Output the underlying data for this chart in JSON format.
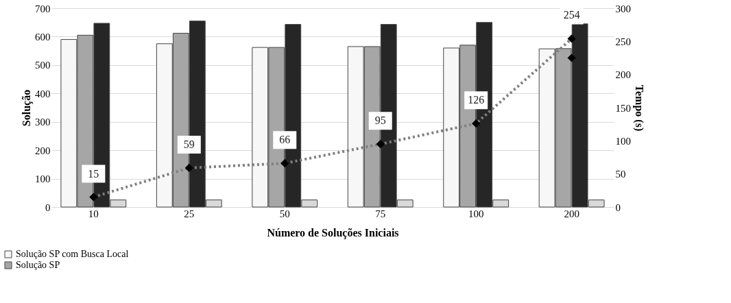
{
  "chart_data": {
    "type": "bar",
    "xlabel": "Número de Soluções Iniciais",
    "ylabel": "Solução",
    "y2label": "Tempo (s)",
    "categories": [
      "10",
      "25",
      "50",
      "75",
      "100",
      "200"
    ],
    "series": [
      {
        "name": "Solução SP com Busca Local",
        "color": "#f7f7f7",
        "values": [
          590,
          575,
          562,
          565,
          560,
          557
        ]
      },
      {
        "name": "Solução SP",
        "color": "#a6a6a6",
        "values": [
          605,
          612,
          562,
          565,
          570,
          558
        ]
      },
      {
        "color": "#262626",
        "values": [
          647,
          655,
          643,
          643,
          650,
          645
        ]
      },
      {
        "color": "#d9d9d9",
        "values": [
          25,
          25,
          25,
          25,
          25,
          25
        ]
      },
      {
        "type": "line",
        "axis": "y2",
        "color": "#7f7f7f",
        "line_style": "dotted",
        "marker": "none",
        "values": [
          15,
          59,
          66,
          95,
          126,
          254
        ]
      },
      {
        "type": "scatter",
        "axis": "y2",
        "color": "#000000",
        "marker": "diamond",
        "values": [
          15,
          59,
          66,
          95,
          126,
          254
        ],
        "value_labels": [
          "15",
          "59",
          "66",
          "95",
          "126",
          "254"
        ]
      },
      {
        "type": "scatter",
        "axis": "y2",
        "color": "#000000",
        "marker": "diamond",
        "values": [
          null,
          null,
          null,
          null,
          null,
          225
        ]
      }
    ],
    "ylim": [
      0,
      700
    ],
    "yticks": [
      0,
      100,
      200,
      300,
      400,
      500,
      600,
      700
    ],
    "y2lim": [
      0,
      300
    ],
    "y2ticks": [
      0,
      50,
      100,
      150,
      200,
      250,
      300
    ],
    "grid": "y",
    "legend": "bottom left"
  }
}
